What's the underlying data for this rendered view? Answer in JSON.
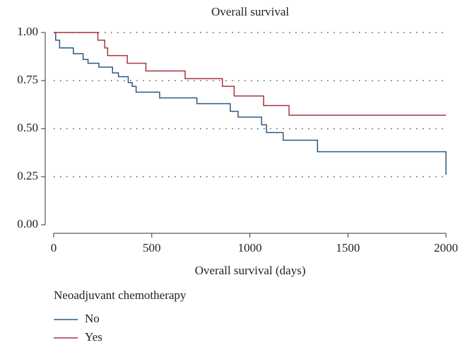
{
  "chart_data": {
    "type": "step",
    "title": "Overall survival",
    "x_label": "Overall survival (days)",
    "legend_title": "Neoadjuvant chemotherapy",
    "legend": "bottom-left",
    "grid": true,
    "xlim": [
      0,
      2000
    ],
    "xticks": [
      0,
      500,
      1000,
      1500,
      2000
    ],
    "ylim": [
      0,
      1
    ],
    "yticks": [
      {
        "value": 0,
        "label": "0.00"
      },
      0.25,
      {
        "value": 0.5,
        "label": "0.50"
      },
      0.75,
      {
        "value": 1,
        "label": "1.00"
      }
    ],
    "series": [
      {
        "name": "No",
        "color": "#2b5a84",
        "x": [
          0,
          10,
          30,
          100,
          150,
          175,
          230,
          300,
          330,
          380,
          400,
          420,
          540,
          730,
          900,
          940,
          1060,
          1085,
          1170,
          1345,
          2000
        ],
        "values": [
          1.0,
          0.96,
          0.92,
          0.89,
          0.86,
          0.84,
          0.82,
          0.79,
          0.77,
          0.74,
          0.72,
          0.69,
          0.66,
          0.63,
          0.59,
          0.56,
          0.52,
          0.48,
          0.44,
          0.38,
          0.26
        ]
      },
      {
        "name": "Yes",
        "color": "#a83440",
        "x": [
          0,
          225,
          260,
          275,
          375,
          470,
          670,
          860,
          920,
          1070,
          1200,
          2000
        ],
        "values": [
          1.0,
          0.96,
          0.92,
          0.88,
          0.84,
          0.8,
          0.76,
          0.72,
          0.67,
          0.62,
          0.57,
          0.57
        ]
      }
    ]
  }
}
